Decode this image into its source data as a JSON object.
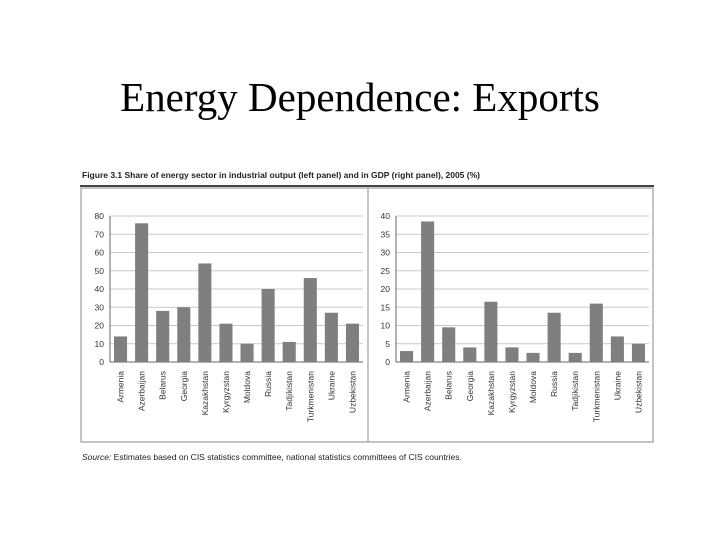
{
  "slide": {
    "title": "Energy Dependence: Exports"
  },
  "figure": {
    "caption": "Figure 3.1 Share of energy sector in industrial output (left panel) and in GDP (right panel), 2005 (%)",
    "source_label": "Source:",
    "source_text": "Estimates based on CIS statistics committee, national statistics committees of CIS countries."
  },
  "chart_data": [
    {
      "type": "bar",
      "title": "Share of energy sector in industrial output",
      "xlabel": "",
      "ylabel": "",
      "categories": [
        "Armenia",
        "Azerbaijan",
        "Belarus",
        "Georgia",
        "Kazakhstan",
        "Kyrgyzstan",
        "Moldova",
        "Russia",
        "Tadjikistan",
        "Turkmenistan",
        "Ukraine",
        "Uzbekistan"
      ],
      "values": [
        14,
        76,
        28,
        30,
        54,
        21,
        10,
        40,
        11,
        46,
        27,
        21
      ],
      "ylim": [
        0,
        80
      ],
      "yticks": [
        0,
        10,
        20,
        30,
        40,
        50,
        60,
        70,
        80
      ],
      "grid": true,
      "color": "#7f7f7f"
    },
    {
      "type": "bar",
      "title": "Share of energy sector in GDP",
      "xlabel": "",
      "ylabel": "",
      "categories": [
        "Armenia",
        "Azerbaijan",
        "Belarus",
        "Georgia",
        "Kazakhstan",
        "Kyrgyzstan",
        "Moldova",
        "Russia",
        "Tadjikistan",
        "Turkmenistan",
        "Ukraine",
        "Uzbekistan"
      ],
      "values": [
        3,
        38.5,
        9.5,
        4,
        16.5,
        4,
        2.5,
        13.5,
        2.5,
        16,
        7,
        5
      ],
      "ylim": [
        0,
        40
      ],
      "yticks": [
        0,
        5,
        10,
        15,
        20,
        25,
        30,
        35,
        40
      ],
      "grid": true,
      "color": "#7f7f7f"
    }
  ]
}
